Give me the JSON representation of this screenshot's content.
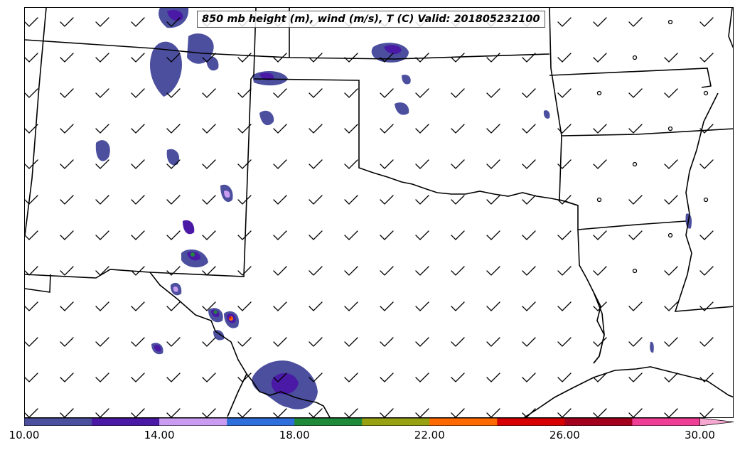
{
  "title": "850 mb height (m), wind (m/s), T (C) Valid: 201805232100",
  "colorbar": {
    "tick_labels": [
      "10.00",
      "14.00",
      "18.00",
      "22.00",
      "26.00",
      "30.00"
    ],
    "tick_values": [
      10,
      14,
      18,
      22,
      26,
      30
    ],
    "range": [
      10,
      31
    ],
    "extend": "max",
    "colors": [
      "#4b4f9e",
      "#4a1aa6",
      "#c99cf2",
      "#2f6fdb",
      "#1f8a3a",
      "#98a112",
      "#ff6a00",
      "#d60000",
      "#a3001e",
      "#ef3e96",
      "#f7a8d1"
    ]
  },
  "styles": {
    "boundary": "#000000",
    "barb": "#000000",
    "field_base": "#4b4f9e",
    "field_core": "#4a1aa6"
  }
}
